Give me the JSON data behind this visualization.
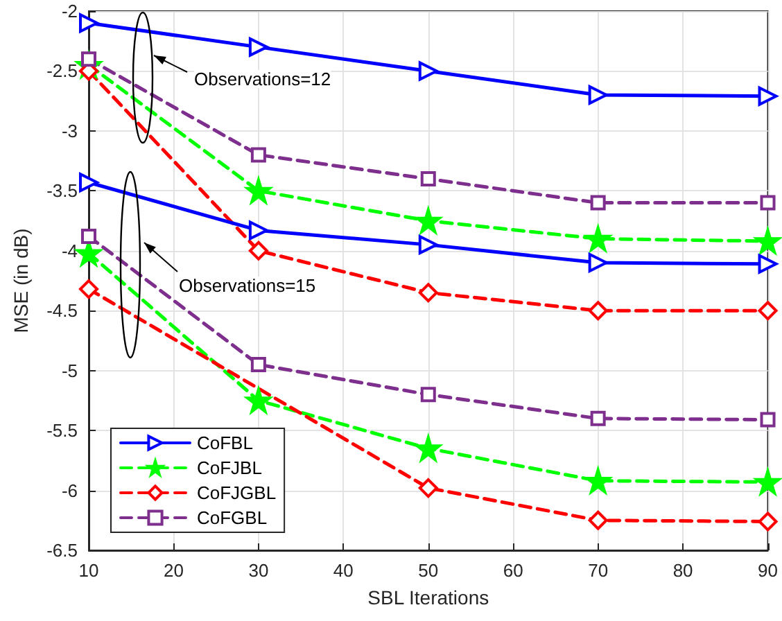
{
  "chart_data": {
    "type": "line",
    "xlabel": "SBL Iterations",
    "ylabel": "MSE (in dB)",
    "x": [
      10,
      30,
      50,
      70,
      90
    ],
    "xlim": [
      10,
      90
    ],
    "xticks": [
      10,
      20,
      30,
      40,
      50,
      60,
      70,
      80,
      90
    ],
    "ylim": [
      -6.5,
      -2
    ],
    "yticks": [
      -6.5,
      -6,
      -5.5,
      -5,
      -4.5,
      -4,
      -3.5,
      -3,
      -2.5,
      -2
    ],
    "grid": true,
    "legend": "bottom left",
    "series": [
      {
        "name": "CoFBL",
        "color": "#0000ff",
        "marker": "triangle",
        "line_style": "solid",
        "values": [
          -2.1,
          -2.3,
          -2.5,
          -2.7,
          -2.71
        ]
      },
      {
        "name": "CoFJBL",
        "color": "#00ff00",
        "marker": "star",
        "line_style": "dashed",
        "values": [
          -2.45,
          -3.5,
          -3.75,
          -3.9,
          -3.92
        ]
      },
      {
        "name": "CoFJGBL",
        "color": "#ff0000",
        "marker": "diamond",
        "line_style": "dashed",
        "values": [
          -2.5,
          -4.0,
          -4.35,
          -4.5,
          -4.5
        ]
      },
      {
        "name": "CoFGBL",
        "color": "#7e2f8e",
        "marker": "square",
        "line_style": "dashed",
        "values": [
          -2.4,
          -3.2,
          -3.4,
          -3.6,
          -3.6
        ]
      },
      {
        "color": "#0000ff",
        "marker": "triangle",
        "line_style": "solid",
        "values": [
          -3.43,
          -3.83,
          -3.95,
          -4.1,
          -4.11
        ]
      },
      {
        "color": "#00ff00",
        "marker": "star",
        "line_style": "dashed",
        "values": [
          -4.02,
          -5.25,
          -5.65,
          -5.92,
          -5.93
        ]
      },
      {
        "color": "#ff0000",
        "marker": "diamond",
        "line_style": "dashed",
        "values": [
          -4.32,
          null,
          -5.98,
          -6.25,
          -6.26
        ]
      },
      {
        "color": "#7e2f8e",
        "marker": "square",
        "line_style": "dashed",
        "values": [
          -3.88,
          -4.95,
          -5.2,
          -5.4,
          -5.41
        ]
      }
    ],
    "annotations": [
      "Observations=12",
      "Observations=15"
    ]
  }
}
